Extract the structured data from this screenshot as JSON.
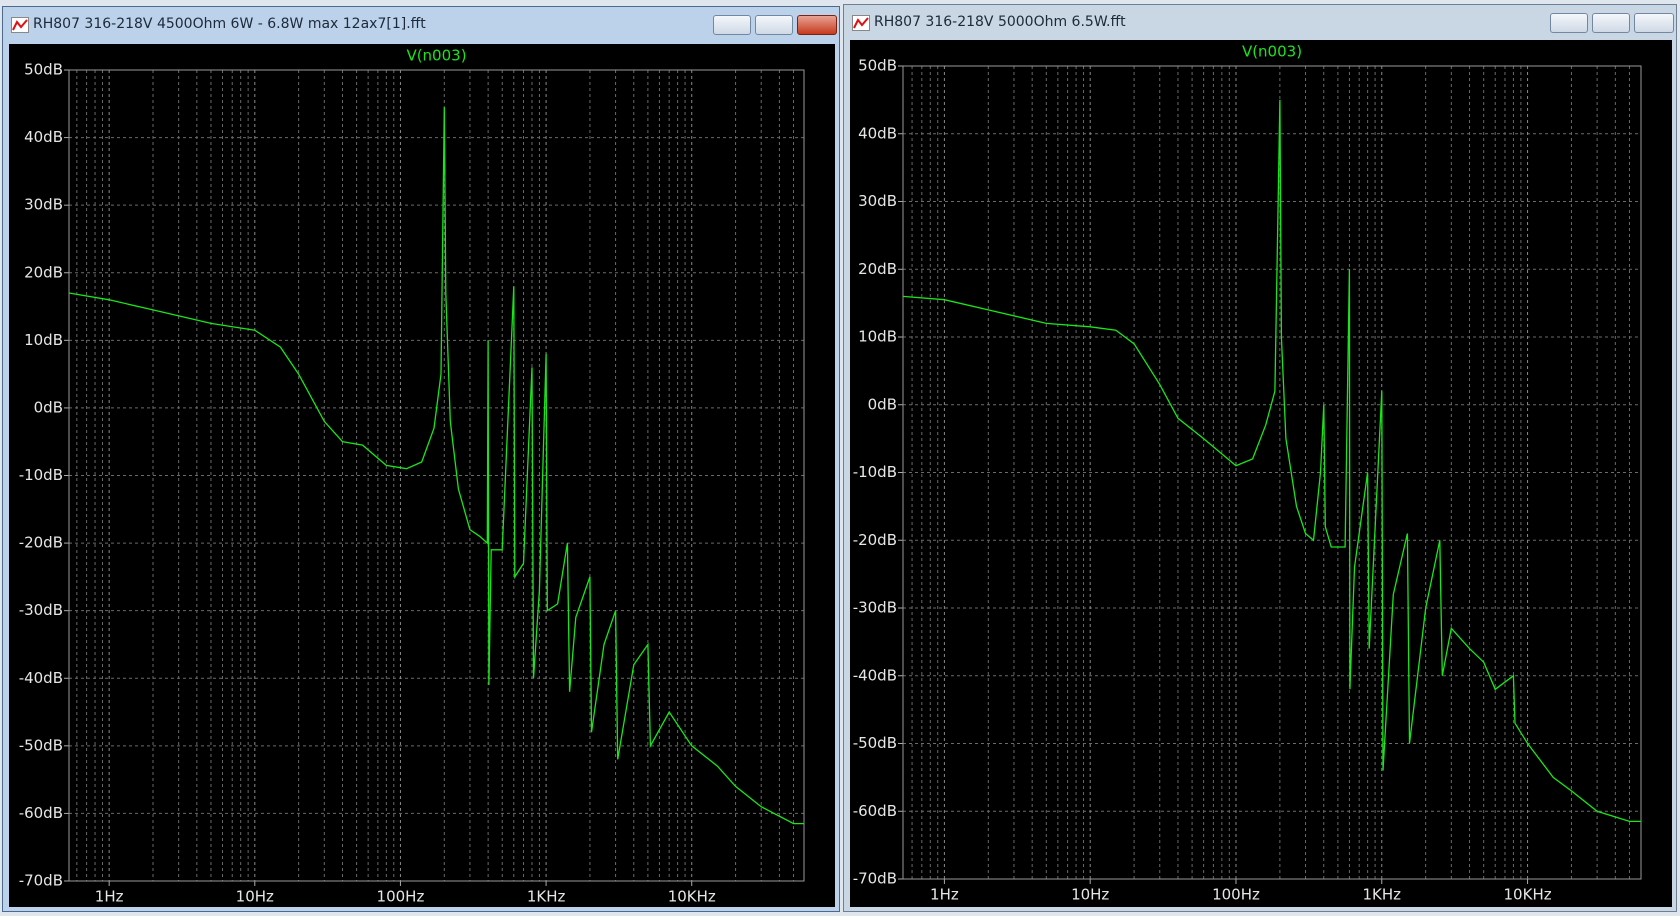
{
  "windows": [
    {
      "title": "RH807 316-218V 4500Ohm 6W  - 6.8W max 12ax7[1].fft"
    },
    {
      "title": "RH807 316-218V 5000Ohm 6.5W.fft"
    }
  ],
  "chart_data": [
    {
      "type": "line",
      "title": "V(n003)",
      "color": "#19e619",
      "xscale": "log",
      "grid": true,
      "xlim": [
        0.53,
        59000
      ],
      "ylim": [
        -70,
        50
      ],
      "xticks": [
        {
          "value": 1,
          "label": "1Hz"
        },
        {
          "value": 10,
          "label": "10Hz"
        },
        {
          "value": 100,
          "label": "100Hz"
        },
        {
          "value": 1000,
          "label": "1KHz"
        },
        {
          "value": 10000,
          "label": "10KHz"
        }
      ],
      "xminorticks": [
        0.6,
        0.7,
        0.8,
        0.9,
        2,
        3,
        4,
        5,
        6,
        7,
        8,
        9,
        20,
        30,
        40,
        50,
        60,
        70,
        80,
        90,
        200,
        300,
        400,
        500,
        600,
        700,
        800,
        900,
        2000,
        3000,
        4000,
        5000,
        6000,
        7000,
        8000,
        9000,
        20000,
        30000,
        40000,
        50000
      ],
      "yticks": [
        {
          "value": 50,
          "label": "50dB"
        },
        {
          "value": 40,
          "label": "40dB"
        },
        {
          "value": 30,
          "label": "30dB"
        },
        {
          "value": 20,
          "label": "20dB"
        },
        {
          "value": 10,
          "label": "10dB"
        },
        {
          "value": 0,
          "label": "0dB"
        },
        {
          "value": -10,
          "label": "-10dB"
        },
        {
          "value": -20,
          "label": "-20dB"
        },
        {
          "value": -30,
          "label": "-30dB"
        },
        {
          "value": -40,
          "label": "-40dB"
        },
        {
          "value": -50,
          "label": "-50dB"
        },
        {
          "value": -60,
          "label": "-60dB"
        },
        {
          "value": -70,
          "label": "-70dB"
        }
      ],
      "x": [
        0.53,
        1,
        2,
        5,
        10,
        15,
        20,
        30,
        40,
        55,
        80,
        110,
        140,
        170,
        190,
        200,
        205,
        220,
        250,
        300,
        350,
        395,
        400,
        405,
        420,
        500,
        600,
        610,
        700,
        800,
        820,
        900,
        1000,
        1020,
        1200,
        1400,
        1450,
        1600,
        2000,
        2050,
        2500,
        3000,
        3100,
        4000,
        5000,
        5200,
        7000,
        10000,
        15000,
        20000,
        30000,
        50000,
        59000
      ],
      "values": [
        17,
        16,
        14.5,
        12.5,
        11.5,
        9,
        5,
        -2,
        -5,
        -5.5,
        -8.5,
        -9,
        -8,
        -3,
        5,
        44.5,
        17,
        -2,
        -12,
        -18,
        -19,
        -20,
        10,
        -41,
        -21,
        -21,
        18,
        -25,
        -23,
        6,
        -40,
        -27,
        8,
        -30,
        -29,
        -20,
        -42,
        -31,
        -25,
        -48,
        -35,
        -30,
        -52,
        -38,
        -35,
        -50,
        -45,
        -50,
        -53,
        -56,
        -59,
        -61.5,
        -61.5
      ]
    },
    {
      "type": "line",
      "title": "V(n003)",
      "color": "#19e619",
      "xscale": "log",
      "grid": true,
      "xlim": [
        0.52,
        60000
      ],
      "ylim": [
        -70,
        50
      ],
      "xticks": [
        {
          "value": 1,
          "label": "1Hz"
        },
        {
          "value": 10,
          "label": "10Hz"
        },
        {
          "value": 100,
          "label": "100Hz"
        },
        {
          "value": 1000,
          "label": "1KHz"
        },
        {
          "value": 10000,
          "label": "10KHz"
        }
      ],
      "xminorticks": [
        0.6,
        0.7,
        0.8,
        0.9,
        2,
        3,
        4,
        5,
        6,
        7,
        8,
        9,
        20,
        30,
        40,
        50,
        60,
        70,
        80,
        90,
        200,
        300,
        400,
        500,
        600,
        700,
        800,
        900,
        2000,
        3000,
        4000,
        5000,
        6000,
        7000,
        8000,
        9000,
        20000,
        30000,
        40000,
        50000
      ],
      "yticks": [
        {
          "value": 50,
          "label": "50dB"
        },
        {
          "value": 40,
          "label": "40dB"
        },
        {
          "value": 30,
          "label": "30dB"
        },
        {
          "value": 20,
          "label": "20dB"
        },
        {
          "value": 10,
          "label": "10dB"
        },
        {
          "value": 0,
          "label": "0dB"
        },
        {
          "value": -10,
          "label": "-10dB"
        },
        {
          "value": -20,
          "label": "-20dB"
        },
        {
          "value": -30,
          "label": "-30dB"
        },
        {
          "value": -40,
          "label": "-40dB"
        },
        {
          "value": -50,
          "label": "-50dB"
        },
        {
          "value": -60,
          "label": "-60dB"
        },
        {
          "value": -70,
          "label": "-70dB"
        }
      ],
      "x": [
        0.52,
        1,
        2,
        5,
        10,
        15,
        20,
        30,
        40,
        60,
        100,
        130,
        160,
        185,
        200,
        205,
        220,
        260,
        300,
        340,
        380,
        400,
        410,
        450,
        560,
        600,
        605,
        650,
        800,
        820,
        1000,
        1020,
        1200,
        1500,
        1550,
        2000,
        2500,
        2600,
        3000,
        4000,
        5000,
        6000,
        8000,
        8200,
        10000,
        15000,
        20000,
        30000,
        50000,
        60000
      ],
      "values": [
        16,
        15.5,
        14,
        12,
        11.5,
        11,
        9,
        3,
        -2,
        -5,
        -9,
        -8,
        -3,
        2,
        45,
        10,
        -5,
        -15,
        -19,
        -20,
        -10,
        0,
        -18,
        -21,
        -21,
        20,
        -42,
        -24,
        -10,
        -36,
        2,
        -54,
        -28,
        -19,
        -50,
        -30,
        -20,
        -40,
        -33,
        -36,
        -38,
        -42,
        -40,
        -47,
        -50,
        -55,
        -57,
        -60,
        -61.5,
        -61.5
      ]
    }
  ]
}
